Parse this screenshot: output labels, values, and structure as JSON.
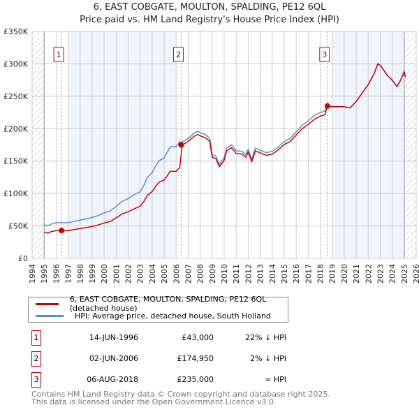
{
  "chart_data": {
    "type": "line",
    "title": "6, EAST COBGATE, MOULTON, SPALDING, PE12 6QL",
    "subtitle": "Price paid vs. HM Land Registry's House Price Index (HPI)",
    "xlim": [
      1994,
      2026
    ],
    "ylim": [
      0,
      350000
    ],
    "x_ticks": [
      "1994",
      "1995",
      "1996",
      "1997",
      "1998",
      "1999",
      "2000",
      "2001",
      "2002",
      "2003",
      "2004",
      "2005",
      "2006",
      "2007",
      "2008",
      "2009",
      "2010",
      "2011",
      "2012",
      "2013",
      "2014",
      "2015",
      "2016",
      "2017",
      "2018",
      "2019",
      "2020",
      "2021",
      "2022",
      "2023",
      "2024",
      "2025",
      "2026"
    ],
    "y_ticks": [
      {
        "v": 0,
        "label": "£0"
      },
      {
        "v": 50000,
        "label": "£50K"
      },
      {
        "v": 100000,
        "label": "£100K"
      },
      {
        "v": 150000,
        "label": "£150K"
      },
      {
        "v": 200000,
        "label": "£200K"
      },
      {
        "v": 250000,
        "label": "£250K"
      },
      {
        "v": 300000,
        "label": "£300K"
      },
      {
        "v": 350000,
        "label": "£350K"
      }
    ],
    "grid": true,
    "series": [
      {
        "name": "6, EAST COBGATE, MOULTON, SPALDING, PE12 6QL (detached house)",
        "color": "#cc0000"
      },
      {
        "name": "HPI: Average price, detached house, South Holland",
        "color": "#5b8dd0",
        "x": [
          1995,
          1995.3,
          1995.6,
          1996,
          1996.5,
          1997,
          1997.5,
          1998,
          1998.5,
          1999,
          1999.5,
          2000,
          2000.5,
          2001,
          2001.5,
          2002,
          2002.5,
          2003,
          2003.3,
          2003.6,
          2004,
          2004.3,
          2004.6,
          2005,
          2005.3,
          2005.5,
          2006,
          2006.3,
          2006.5,
          2007,
          2007.5,
          2007.8,
          2008,
          2008.5,
          2008.8,
          2009,
          2009.3,
          2009.6,
          2010,
          2010.2,
          2010.6,
          2011,
          2011.5,
          2011.8,
          2012,
          2012.3,
          2012.6,
          2013,
          2013.5,
          2014,
          2014.4,
          2014.7,
          2015,
          2015.5,
          2016,
          2016.5,
          2017,
          2017.5,
          2018,
          2018.4,
          2018.6,
          2019,
          2019.5,
          2020,
          2020.5,
          2021,
          2021.5,
          2022,
          2022.5,
          2022.8,
          2023,
          2023.3,
          2023.6,
          2024,
          2024.4,
          2024.7,
          2025,
          2025.1
        ],
        "values": [
          52,
          50,
          53,
          55,
          55,
          55,
          57,
          59,
          61,
          63,
          66,
          70,
          73,
          80,
          88,
          92,
          98,
          103,
          112,
          125,
          132,
          143,
          151,
          155,
          165,
          172,
          172,
          180,
          179,
          185,
          193,
          196,
          194,
          190,
          185,
          160,
          158,
          145,
          155,
          170,
          175,
          166,
          165,
          160,
          168,
          153,
          170,
          167,
          163,
          165,
          170,
          175,
          180,
          185,
          195,
          205,
          212,
          220,
          225,
          227,
          236,
          234,
          234,
          234,
          232,
          242,
          255,
          268,
          285,
          300,
          298,
          290,
          282,
          275,
          265,
          275,
          288,
          280
        ]
      }
    ],
    "sales": [
      {
        "id": "1",
        "x": 1996.45,
        "date": "14-JUN-1996",
        "price": 43000,
        "price_label": "£43,000",
        "hpi": "22% ↓ HPI"
      },
      {
        "id": "2",
        "x": 2006.42,
        "date": "02-JUN-2006",
        "price": 174950,
        "price_label": "£174,950",
        "hpi": "2% ↓ HPI"
      },
      {
        "id": "3",
        "x": 2018.6,
        "date": "06-AUG-2018",
        "price": 235000,
        "price_label": "£235,000",
        "hpi": "≈ HPI"
      }
    ]
  },
  "footer": {
    "line1": "Contains HM Land Registry data © Crown copyright and database right 2025.",
    "line2": "This data is licensed under the Open Government Licence v3.0."
  }
}
